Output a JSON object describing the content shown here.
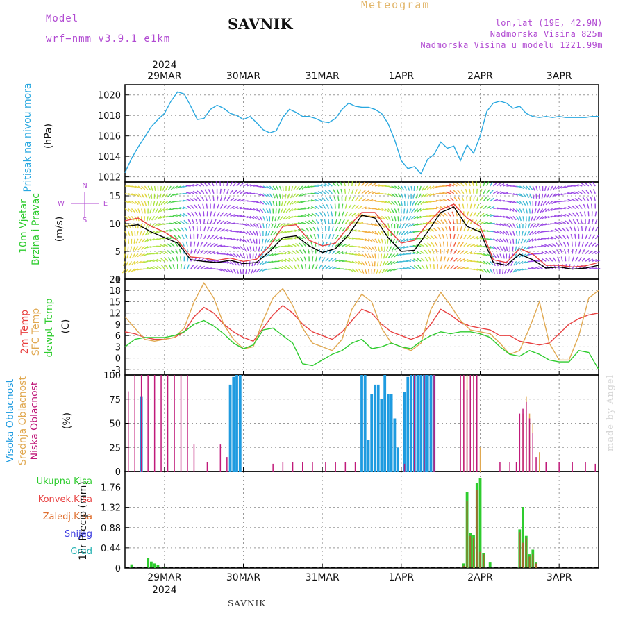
{
  "header": {
    "model_label": "Model",
    "model_name": "wrf−nmm_v3.9.1  e1km",
    "station": "SAVNIK",
    "title": "Meteogram",
    "location": "lon,lat (19E, 42.9N)",
    "elevation": "Nadmorska Visina 825m",
    "model_elevation": "Nadmorska Visina u modelu 1221.99m"
  },
  "footer": {
    "station": "SAVNIK",
    "credit": "made by Angel"
  },
  "colors": {
    "pressure": "#29a8e0",
    "wind_label": "#2ecc2e",
    "temp2m": "#e84040",
    "sfc_temp": "#e0a850",
    "dewpt": "#2ecc2e",
    "high_cloud": "#1e9be0",
    "mid_cloud": "#e0a850",
    "low_cloud": "#c01a7a",
    "total_precip": "#2ecc2e",
    "conv_precip": "#e84040",
    "frozen_precip": "#e07030",
    "snow": "#3a3ae0",
    "hail": "#20b0b0",
    "header": "#b14ad2"
  },
  "chart_data": [
    {
      "id": "pressure",
      "type": "line",
      "ylabel_title": "Pritisak na nivou mora",
      "unit": "(hPa)",
      "ylim": [
        1011.5,
        1021
      ],
      "yticks": [
        1012,
        1014,
        1016,
        1018,
        1020
      ],
      "xlim": [
        0,
        144
      ],
      "grid": true,
      "top_axis_year": "2024",
      "x_day_ticks": [
        {
          "label": "29MAR",
          "x": 12
        },
        {
          "label": "30MAR",
          "x": 36
        },
        {
          "label": "31MAR",
          "x": 60
        },
        {
          "label": "1APR",
          "x": 84
        },
        {
          "label": "2APR",
          "x": 108
        },
        {
          "label": "3APR",
          "x": 132
        }
      ],
      "series": [
        {
          "color": "#29a8e0",
          "x": [
            0,
            2,
            4,
            6,
            8,
            10,
            12,
            14,
            16,
            18,
            20,
            22,
            24,
            26,
            28,
            30,
            32,
            34,
            36,
            38,
            40,
            42,
            44,
            46,
            48,
            50,
            52,
            54,
            56,
            58,
            60,
            62,
            64,
            66,
            68,
            70,
            72,
            74,
            76,
            78,
            80,
            82,
            84,
            86,
            88,
            90,
            92,
            94,
            96,
            98,
            100,
            102,
            104,
            106,
            108,
            110,
            112,
            114,
            116,
            118,
            120,
            122,
            124,
            126,
            128,
            130,
            132,
            134,
            136,
            138,
            140,
            142,
            144
          ],
          "values": [
            1012.4,
            1013.8,
            1014.9,
            1015.9,
            1016.9,
            1017.6,
            1018.2,
            1019.4,
            1020.3,
            1020.1,
            1018.9,
            1017.6,
            1017.7,
            1018.6,
            1019.0,
            1018.7,
            1018.2,
            1018.0,
            1017.6,
            1017.9,
            1017.3,
            1016.6,
            1016.3,
            1016.5,
            1017.8,
            1018.6,
            1018.3,
            1017.9,
            1017.9,
            1017.7,
            1017.4,
            1017.3,
            1017.7,
            1018.6,
            1019.2,
            1018.9,
            1018.8,
            1018.8,
            1018.6,
            1018.2,
            1017.2,
            1015.6,
            1013.6,
            1012.8,
            1013.0,
            1012.3,
            1013.7,
            1014.2,
            1015.4,
            1014.8,
            1015.0,
            1013.6,
            1015.1,
            1014.3,
            1016.0,
            1018.4,
            1019.2,
            1019.4,
            1019.2,
            1018.7,
            1018.9,
            1018.2,
            1017.9,
            1017.8,
            1017.9,
            1017.8,
            1017.9,
            1017.8,
            1017.8,
            1017.8,
            1017.8,
            1017.9,
            1017.9
          ]
        }
      ]
    },
    {
      "id": "wind",
      "type": "line",
      "ylabel_title": "10m Vjetar",
      "ylabel_sub": "Brzina i Pravac",
      "unit": "(m/s)",
      "compass": [
        "N",
        "E",
        "S",
        "W"
      ],
      "ylim": [
        0,
        17.5
      ],
      "yticks": [
        0,
        5,
        10,
        15
      ],
      "xlim": [
        0,
        144
      ],
      "grid": true,
      "series": [
        {
          "name": "speed",
          "color": "#000000",
          "x": [
            0,
            4,
            8,
            12,
            16,
            20,
            24,
            28,
            32,
            36,
            40,
            44,
            48,
            52,
            56,
            60,
            64,
            68,
            72,
            76,
            80,
            84,
            88,
            92,
            96,
            100,
            104,
            108,
            112,
            116,
            120,
            124,
            128,
            132,
            136,
            140,
            144
          ],
          "values": [
            9.5,
            9.8,
            8.5,
            7.5,
            6.5,
            3.5,
            3.2,
            3.0,
            3.4,
            2.8,
            3.0,
            5.0,
            7.5,
            7.8,
            6.0,
            4.8,
            5.5,
            8.0,
            11.5,
            11.0,
            7.5,
            5.0,
            5.2,
            8.5,
            12.0,
            13.0,
            9.5,
            8.5,
            3.0,
            2.5,
            4.5,
            3.5,
            2.0,
            2.2,
            1.8,
            2.0,
            2.5
          ]
        },
        {
          "name": "gust",
          "color": "#e84040",
          "x": [
            0,
            4,
            8,
            12,
            16,
            20,
            24,
            28,
            32,
            36,
            40,
            44,
            48,
            52,
            56,
            60,
            64,
            68,
            72,
            76,
            80,
            84,
            88,
            92,
            96,
            100,
            104,
            108,
            112,
            116,
            120,
            124,
            128,
            132,
            136,
            140,
            144
          ],
          "values": [
            10.5,
            11.0,
            9.5,
            8.5,
            7.0,
            4.0,
            3.8,
            3.4,
            3.8,
            3.2,
            3.6,
            6.0,
            9.5,
            9.8,
            7.0,
            6.0,
            6.5,
            9.5,
            12.0,
            12.0,
            9.0,
            6.5,
            7.0,
            10.0,
            12.5,
            13.5,
            11.0,
            9.5,
            3.5,
            3.0,
            5.5,
            4.5,
            2.5,
            2.5,
            2.2,
            2.4,
            3.0
          ]
        }
      ]
    },
    {
      "id": "temperature",
      "type": "line",
      "ylabels": [
        "2m Temp",
        "SFC Temp",
        "dewpt Temp"
      ],
      "unit": "(C)",
      "ylim": [
        -4.5,
        21
      ],
      "yticks": [
        -3,
        0,
        3,
        6,
        9,
        12,
        15,
        18,
        21
      ],
      "xlim": [
        0,
        144
      ],
      "grid": true,
      "series": [
        {
          "name": "2m Temp",
          "color": "#e84040",
          "x": [
            0,
            3,
            6,
            9,
            12,
            15,
            18,
            21,
            24,
            27,
            30,
            33,
            36,
            39,
            42,
            45,
            48,
            51,
            54,
            57,
            60,
            63,
            66,
            69,
            72,
            75,
            78,
            81,
            84,
            87,
            90,
            93,
            96,
            99,
            102,
            105,
            108,
            111,
            114,
            117,
            120,
            123,
            126,
            129,
            132,
            135,
            138,
            141,
            144
          ],
          "values": [
            7,
            6.5,
            5.5,
            5,
            5,
            5.5,
            7,
            11,
            13.5,
            12,
            9,
            7,
            5.5,
            4.5,
            8,
            11.5,
            14,
            12,
            9,
            7,
            6,
            5,
            7,
            10,
            13,
            12,
            9,
            7,
            6,
            5,
            6,
            9,
            13,
            11.5,
            9.5,
            8.5,
            8,
            7.5,
            6,
            6,
            4.5,
            4,
            3.5,
            4,
            6.5,
            9,
            10.5,
            11.5,
            12
          ]
        },
        {
          "name": "SFC Temp",
          "color": "#e0a850",
          "x": [
            0,
            3,
            6,
            9,
            12,
            15,
            18,
            21,
            24,
            27,
            30,
            33,
            36,
            39,
            42,
            45,
            48,
            51,
            54,
            57,
            60,
            63,
            66,
            69,
            72,
            75,
            78,
            81,
            84,
            87,
            90,
            93,
            96,
            99,
            102,
            105,
            108,
            111,
            114,
            117,
            120,
            123,
            126,
            129,
            132,
            135,
            138,
            141,
            144
          ],
          "values": [
            11,
            8,
            5,
            4.5,
            5,
            5.5,
            8,
            15,
            20,
            16,
            9,
            5,
            2.5,
            3,
            10,
            16,
            18.5,
            14,
            8,
            4,
            3,
            2,
            5,
            13,
            17,
            15,
            8,
            4,
            3,
            2,
            4,
            13,
            17.5,
            14,
            10,
            7.5,
            7,
            6.5,
            4,
            1,
            2,
            8,
            15,
            4,
            -0.5,
            -0.5,
            6,
            16,
            18
          ]
        },
        {
          "name": "dewpt Temp",
          "color": "#2ecc2e",
          "x": [
            0,
            3,
            6,
            9,
            12,
            15,
            18,
            21,
            24,
            27,
            30,
            33,
            36,
            39,
            42,
            45,
            48,
            51,
            54,
            57,
            60,
            63,
            66,
            69,
            72,
            75,
            78,
            81,
            84,
            87,
            90,
            93,
            96,
            99,
            102,
            105,
            108,
            111,
            114,
            117,
            120,
            123,
            126,
            129,
            132,
            135,
            138,
            141,
            144
          ],
          "values": [
            3,
            5,
            5.5,
            5.5,
            5.5,
            6,
            7,
            9,
            10,
            8.5,
            6.5,
            4,
            2.5,
            3.5,
            7.5,
            8,
            6,
            4,
            -1.5,
            -2,
            -0.5,
            1,
            2,
            4,
            5,
            2.5,
            3,
            4,
            3,
            2.5,
            4.5,
            6,
            7,
            6.5,
            7,
            7,
            6.5,
            5.5,
            3,
            1,
            0.5,
            2,
            1,
            -0.5,
            -1,
            -1,
            2,
            1.5,
            -3
          ]
        }
      ]
    },
    {
      "id": "cloud",
      "type": "bar",
      "ylabels": [
        "Visoka Oblacnost",
        "Srednja Oblacnost",
        "Niska Oblacnost"
      ],
      "unit": "(%)",
      "ylim": [
        0,
        100
      ],
      "yticks": [
        0,
        25,
        50,
        75,
        100
      ],
      "xlim": [
        0,
        144
      ],
      "grid": true,
      "series": [
        {
          "name": "Visoka Oblacnost",
          "color": "#1e9be0",
          "x": [
            5,
            32,
            33,
            34,
            35,
            72,
            73,
            74,
            75,
            76,
            77,
            78,
            79,
            80,
            81,
            82,
            83,
            85,
            86,
            87,
            88,
            89,
            90,
            91,
            92,
            93,
            94
          ],
          "values": [
            78,
            90,
            98,
            100,
            100,
            100,
            100,
            33,
            80,
            90,
            90,
            75,
            100,
            80,
            80,
            55,
            25,
            82,
            98,
            100,
            100,
            100,
            100,
            100,
            100,
            100,
            100
          ]
        },
        {
          "name": "Srednja Oblacnost",
          "color": "#e0a850",
          "x": [
            103,
            104,
            106,
            108,
            121,
            122,
            123,
            124,
            126
          ],
          "values": [
            98,
            100,
            100,
            25,
            60,
            78,
            60,
            50,
            20
          ]
        },
        {
          "name": "Niska Oblacnost",
          "color": "#c01a7a",
          "x": [
            1,
            3,
            5,
            7,
            9,
            11,
            13,
            15,
            17,
            19,
            21,
            25,
            29,
            31,
            45,
            48,
            51,
            54,
            57,
            61,
            64,
            67,
            70,
            85,
            88,
            91,
            94,
            102,
            103,
            104,
            105,
            106,
            107,
            114,
            117,
            119,
            120,
            121,
            122,
            123,
            124,
            125,
            128,
            132,
            136,
            140,
            143
          ],
          "values": [
            83,
            100,
            100,
            100,
            100,
            100,
            100,
            100,
            100,
            100,
            28,
            10,
            28,
            15,
            8,
            10,
            10,
            10,
            10,
            10,
            10,
            10,
            10,
            8,
            100,
            100,
            100,
            100,
            100,
            85,
            100,
            100,
            100,
            10,
            10,
            10,
            60,
            65,
            72,
            55,
            40,
            15,
            10,
            10,
            10,
            10,
            8
          ]
        }
      ]
    },
    {
      "id": "precip",
      "type": "bar",
      "ylabel_title": "1hr Precip (mm)",
      "legend": [
        "Ukupna Kisa",
        "Konvek.Kisa",
        "Zaledj.Kisa",
        "Snijeg",
        "Grad"
      ],
      "ylim": [
        0,
        2.1
      ],
      "yticks": [
        0,
        0.44,
        0.88,
        1.32,
        1.76
      ],
      "xlim": [
        0,
        144
      ],
      "grid": true,
      "bottom_axis_year": "2024",
      "x_day_ticks": [
        {
          "label": "29MAR",
          "x": 12
        },
        {
          "label": "30MAR",
          "x": 36
        },
        {
          "label": "31MAR",
          "x": 60
        },
        {
          "label": "1APR",
          "x": 84
        },
        {
          "label": "2APR",
          "x": 108
        },
        {
          "label": "3APR",
          "x": 132
        }
      ],
      "series": [
        {
          "name": "Ukupna Kisa",
          "color": "#2ecc2e",
          "x": [
            2,
            7,
            8,
            9,
            10,
            12,
            103,
            104,
            105,
            106,
            107,
            108,
            109,
            111,
            120,
            121,
            122,
            123,
            124,
            125
          ],
          "values": [
            0.08,
            0.22,
            0.14,
            0.1,
            0.07,
            0.02,
            0.1,
            1.65,
            0.76,
            0.72,
            1.85,
            1.95,
            0.32,
            0.12,
            0.84,
            1.33,
            0.7,
            0.3,
            0.4,
            0.12
          ]
        },
        {
          "name": "Konvek.Kisa",
          "color": "#a06a30",
          "x": [
            103,
            104,
            105,
            106,
            107,
            108,
            109,
            120,
            121,
            122,
            123,
            124,
            125
          ],
          "values": [
            0.05,
            1.45,
            0.7,
            0.65,
            1.7,
            0.35,
            0.3,
            0.78,
            0.55,
            0.65,
            0.25,
            0.3,
            0.1
          ]
        }
      ]
    }
  ]
}
